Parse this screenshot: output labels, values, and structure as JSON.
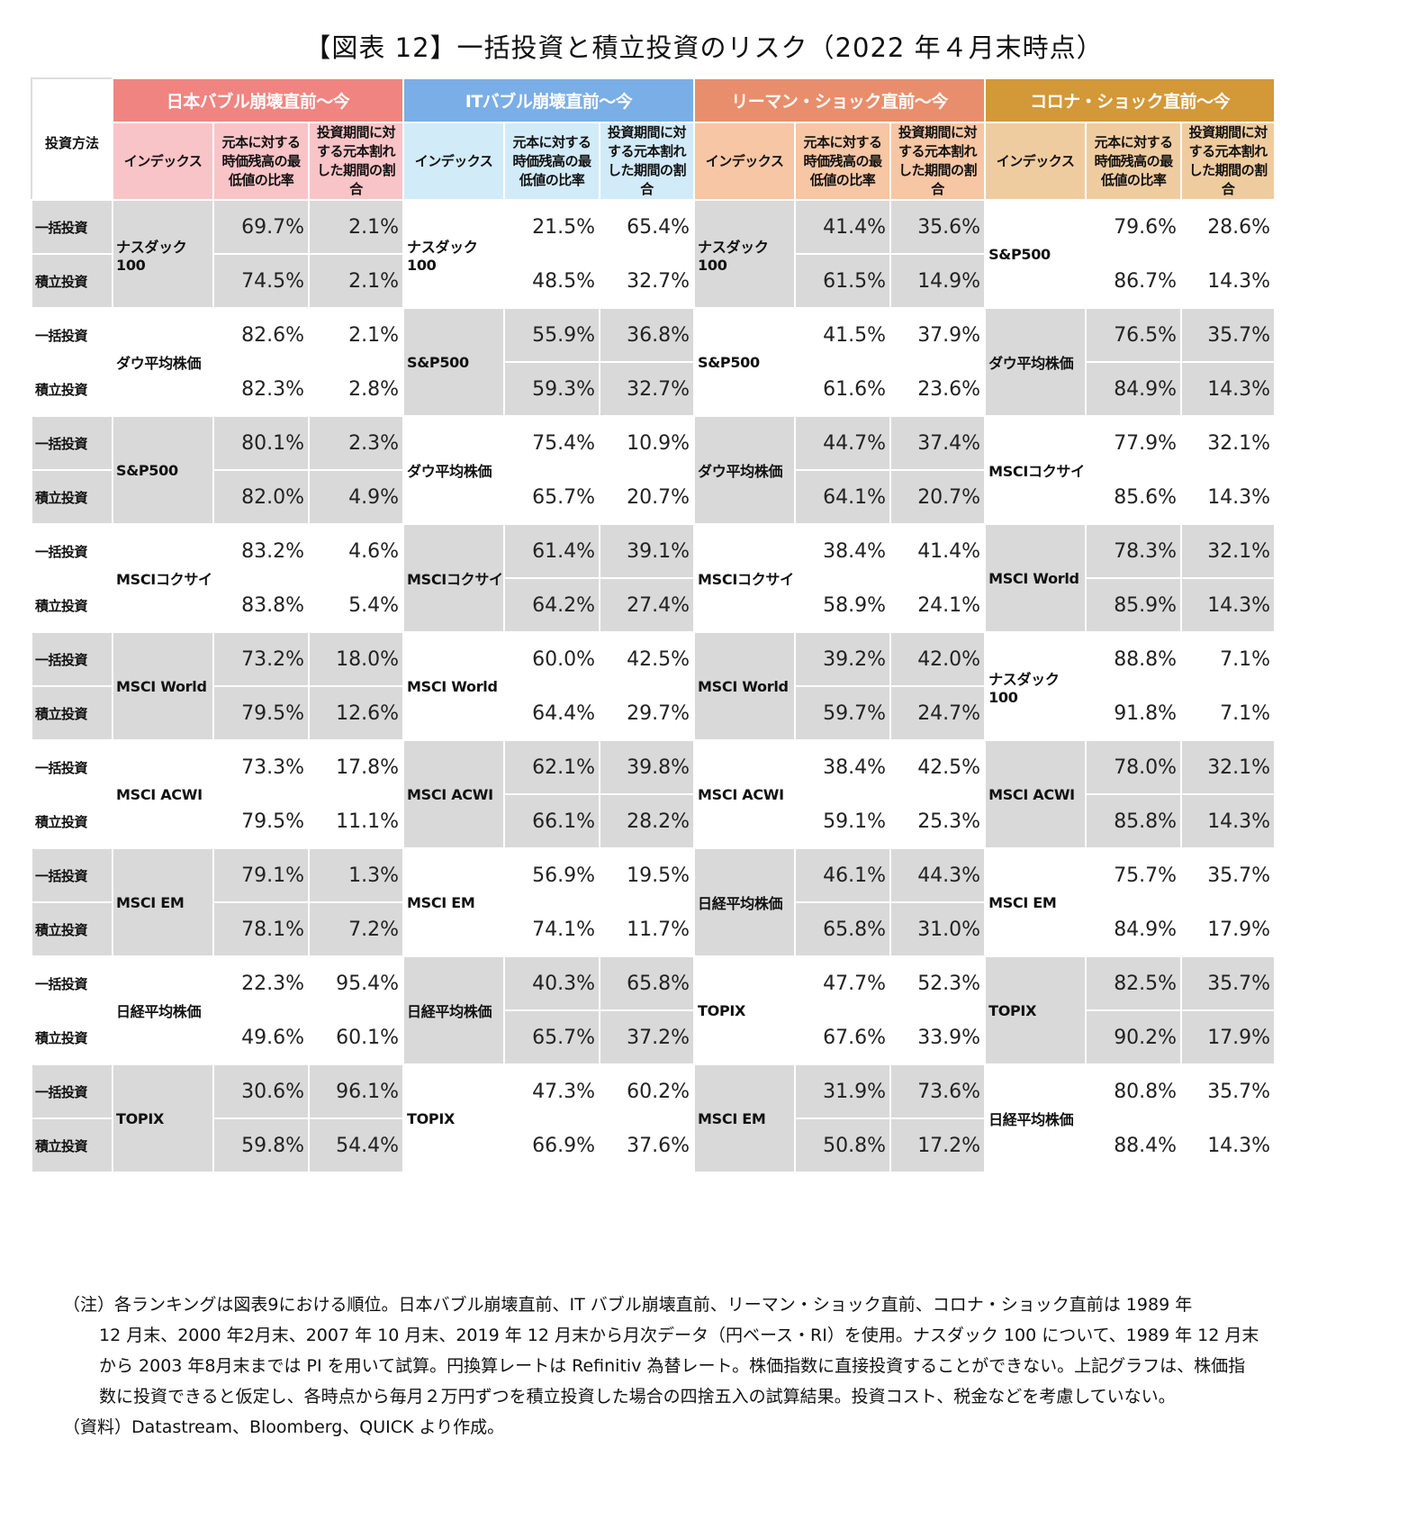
{
  "title": "【図表 12】一括投資と積立投資のリスク（2022 年４月末時点）",
  "header": {
    "method_label": "投資方法",
    "sub_labels": [
      "インデックス",
      "元本に対する時価残高の最低値の比率",
      "投資期間に対する元本割れした期間の割合"
    ],
    "groups": [
      {
        "label": "日本バブル崩壊直前～今",
        "color": "#f08480"
      },
      {
        "label": "ITバブル崩壊直前～今",
        "color": "#7aaee6"
      },
      {
        "label": "リーマン・ショック直前～今",
        "color": "#e98e6c"
      },
      {
        "label": "コロナ・ショック直前～今",
        "color": "#d39838"
      }
    ]
  },
  "methods": [
    "一括投資",
    "積立投資"
  ],
  "rows": [
    [
      {
        "index": "ナスダック100",
        "lump": [
          "69.7%",
          "2.1%"
        ],
        "dca": [
          "74.5%",
          "2.1%"
        ]
      },
      {
        "index": "ナスダック100",
        "lump": [
          "21.5%",
          "65.4%"
        ],
        "dca": [
          "48.5%",
          "32.7%"
        ]
      },
      {
        "index": "ナスダック100",
        "lump": [
          "41.4%",
          "35.6%"
        ],
        "dca": [
          "61.5%",
          "14.9%"
        ]
      },
      {
        "index": "S&P500",
        "lump": [
          "79.6%",
          "28.6%"
        ],
        "dca": [
          "86.7%",
          "14.3%"
        ]
      }
    ],
    [
      {
        "index": "ダウ平均株価",
        "lump": [
          "82.6%",
          "2.1%"
        ],
        "dca": [
          "82.3%",
          "2.8%"
        ]
      },
      {
        "index": "S&P500",
        "lump": [
          "55.9%",
          "36.8%"
        ],
        "dca": [
          "59.3%",
          "32.7%"
        ]
      },
      {
        "index": "S&P500",
        "lump": [
          "41.5%",
          "37.9%"
        ],
        "dca": [
          "61.6%",
          "23.6%"
        ]
      },
      {
        "index": "ダウ平均株価",
        "lump": [
          "76.5%",
          "35.7%"
        ],
        "dca": [
          "84.9%",
          "14.3%"
        ]
      }
    ],
    [
      {
        "index": "S&P500",
        "lump": [
          "80.1%",
          "2.3%"
        ],
        "dca": [
          "82.0%",
          "4.9%"
        ]
      },
      {
        "index": "ダウ平均株価",
        "lump": [
          "75.4%",
          "10.9%"
        ],
        "dca": [
          "65.7%",
          "20.7%"
        ]
      },
      {
        "index": "ダウ平均株価",
        "lump": [
          "44.7%",
          "37.4%"
        ],
        "dca": [
          "64.1%",
          "20.7%"
        ]
      },
      {
        "index": "MSCIコクサイ",
        "lump": [
          "77.9%",
          "32.1%"
        ],
        "dca": [
          "85.6%",
          "14.3%"
        ]
      }
    ],
    [
      {
        "index": "MSCIコクサイ",
        "lump": [
          "83.2%",
          "4.6%"
        ],
        "dca": [
          "83.8%",
          "5.4%"
        ]
      },
      {
        "index": "MSCIコクサイ",
        "lump": [
          "61.4%",
          "39.1%"
        ],
        "dca": [
          "64.2%",
          "27.4%"
        ]
      },
      {
        "index": "MSCIコクサイ",
        "lump": [
          "38.4%",
          "41.4%"
        ],
        "dca": [
          "58.9%",
          "24.1%"
        ]
      },
      {
        "index": "MSCI World",
        "lump": [
          "78.3%",
          "32.1%"
        ],
        "dca": [
          "85.9%",
          "14.3%"
        ]
      }
    ],
    [
      {
        "index": "MSCI  World",
        "lump": [
          "73.2%",
          "18.0%"
        ],
        "dca": [
          "79.5%",
          "12.6%"
        ]
      },
      {
        "index": "MSCI  World",
        "lump": [
          "60.0%",
          "42.5%"
        ],
        "dca": [
          "64.4%",
          "29.7%"
        ]
      },
      {
        "index": "MSCI  World",
        "lump": [
          "39.2%",
          "42.0%"
        ],
        "dca": [
          "59.7%",
          "24.7%"
        ]
      },
      {
        "index": "ナスダック100",
        "lump": [
          "88.8%",
          "7.1%"
        ],
        "dca": [
          "91.8%",
          "7.1%"
        ]
      }
    ],
    [
      {
        "index": "MSCI  ACWI",
        "lump": [
          "73.3%",
          "17.8%"
        ],
        "dca": [
          "79.5%",
          "11.1%"
        ]
      },
      {
        "index": "MSCI  ACWI",
        "lump": [
          "62.1%",
          "39.8%"
        ],
        "dca": [
          "66.1%",
          "28.2%"
        ]
      },
      {
        "index": "MSCI  ACWI",
        "lump": [
          "38.4%",
          "42.5%"
        ],
        "dca": [
          "59.1%",
          "25.3%"
        ]
      },
      {
        "index": "MSCI ACWI",
        "lump": [
          "78.0%",
          "32.1%"
        ],
        "dca": [
          "85.8%",
          "14.3%"
        ]
      }
    ],
    [
      {
        "index": "MSCI  EM",
        "lump": [
          "79.1%",
          "1.3%"
        ],
        "dca": [
          "78.1%",
          "7.2%"
        ]
      },
      {
        "index": "MSCI  EM",
        "lump": [
          "56.9%",
          "19.5%"
        ],
        "dca": [
          "74.1%",
          "11.7%"
        ]
      },
      {
        "index": "日経平均株価",
        "lump": [
          "46.1%",
          "44.3%"
        ],
        "dca": [
          "65.8%",
          "31.0%"
        ]
      },
      {
        "index": "MSCI EM",
        "lump": [
          "75.7%",
          "35.7%"
        ],
        "dca": [
          "84.9%",
          "17.9%"
        ]
      }
    ],
    [
      {
        "index": "日経平均株価",
        "lump": [
          "22.3%",
          "95.4%"
        ],
        "dca": [
          "49.6%",
          "60.1%"
        ]
      },
      {
        "index": "日経平均株価",
        "lump": [
          "40.3%",
          "65.8%"
        ],
        "dca": [
          "65.7%",
          "37.2%"
        ]
      },
      {
        "index": "TOPIX",
        "lump": [
          "47.7%",
          "52.3%"
        ],
        "dca": [
          "67.6%",
          "33.9%"
        ]
      },
      {
        "index": "TOPIX",
        "lump": [
          "82.5%",
          "35.7%"
        ],
        "dca": [
          "90.2%",
          "17.9%"
        ]
      }
    ],
    [
      {
        "index": "TOPIX",
        "lump": [
          "30.6%",
          "96.1%"
        ],
        "dca": [
          "59.8%",
          "54.4%"
        ]
      },
      {
        "index": "TOPIX",
        "lump": [
          "47.3%",
          "60.2%"
        ],
        "dca": [
          "66.9%",
          "37.6%"
        ]
      },
      {
        "index": "MSCI  EM",
        "lump": [
          "31.9%",
          "73.6%"
        ],
        "dca": [
          "50.8%",
          "17.2%"
        ]
      },
      {
        "index": "日経平均株価",
        "lump": [
          "80.8%",
          "35.7%"
        ],
        "dca": [
          "88.4%",
          "14.3%"
        ]
      }
    ]
  ],
  "notes": {
    "note_line1": "（注）各ランキングは図表9における順位。日本バブル崩壊直前、IT バブル崩壊直前、リーマン・ショック直前、コロナ・ショック直前は 1989 年",
    "note_rest": "12 月末、2000 年2月末、2007 年 10 月末、2019 年 12 月末から月次データ（円ベース・RI）を使用。ナスダック 100 について、1989 年 12 月末から 2003 年8月末までは PI を用いて試算。円換算レートは Refinitiv 為替レート。株価指数に直接投資することができない。上記グラフは、株価指数に投資できると仮定し、各時点から毎月２万円ずつを積立投資した場合の四捨五入の試算結果。投資コスト、税金などを考慮していない。",
    "source": "（資料）Datastream、Bloomberg、QUICK より作成。"
  }
}
